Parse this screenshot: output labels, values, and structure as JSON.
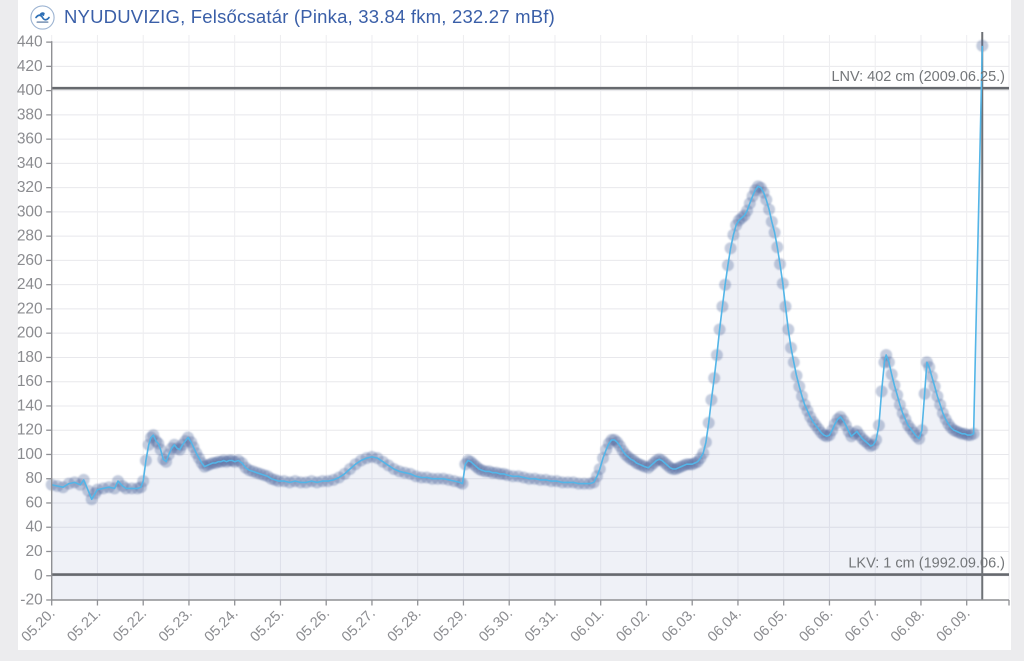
{
  "header": {
    "title": "NYUDUVIZIG, Felsőcsatár (Pinka, 33.84 fkm, 232.27 mBf)",
    "logo_icon": "nyuduvizig-water-authority-logo"
  },
  "chart_data": {
    "type": "line",
    "title": "NYUDUVIZIG, Felsőcsatár (Pinka, 33.84 fkm, 232.27 mBf)",
    "xlabel": "",
    "ylabel": "",
    "unit": "cm",
    "ylim": [
      -20,
      440
    ],
    "y_ticks": [
      -20,
      0,
      20,
      40,
      60,
      80,
      100,
      120,
      140,
      160,
      180,
      200,
      220,
      240,
      260,
      280,
      300,
      320,
      340,
      360,
      380,
      400,
      420,
      440
    ],
    "x_tick_labels": [
      "05.20.",
      "05.21.",
      "05.22.",
      "05.23.",
      "05.24.",
      "05.25.",
      "05.26.",
      "05.27.",
      "05.28.",
      "05.29.",
      "05.30.",
      "05.31.",
      "06.01.",
      "06.02.",
      "06.03.",
      "06.04.",
      "06.05.",
      "06.06.",
      "06.07.",
      "06.08.",
      "06.09."
    ],
    "grid": true,
    "legend": "none",
    "reference_lines": [
      {
        "id": "LNV",
        "label": "LNV: 402 cm (2009.06.25.)",
        "value": 402
      },
      {
        "id": "LKV",
        "label": "LKV: 1 cm (1992.09.06.)",
        "value": 1
      }
    ],
    "last_measurement_day": 20.34,
    "series": [
      {
        "name": "water-level",
        "points": [
          [
            0,
            75
          ],
          [
            0.125,
            74
          ],
          [
            0.25,
            73
          ],
          [
            0.375,
            76
          ],
          [
            0.5,
            77
          ],
          [
            0.625,
            75
          ],
          [
            0.7,
            79
          ],
          [
            0.8,
            70
          ],
          [
            0.875,
            63
          ],
          [
            0.95,
            68
          ],
          [
            1.0,
            71
          ],
          [
            1.125,
            72
          ],
          [
            1.25,
            73
          ],
          [
            1.375,
            72
          ],
          [
            1.45,
            78
          ],
          [
            1.55,
            74
          ],
          [
            1.625,
            72
          ],
          [
            1.75,
            72
          ],
          [
            1.875,
            72
          ],
          [
            1.95,
            73
          ],
          [
            2.0,
            78
          ],
          [
            2.06,
            95
          ],
          [
            2.12,
            108
          ],
          [
            2.17,
            114
          ],
          [
            2.22,
            116
          ],
          [
            2.28,
            111
          ],
          [
            2.33,
            109
          ],
          [
            2.38,
            104
          ],
          [
            2.44,
            96
          ],
          [
            2.5,
            94
          ],
          [
            2.56,
            100
          ],
          [
            2.62,
            105
          ],
          [
            2.68,
            108
          ],
          [
            2.74,
            105
          ],
          [
            2.8,
            104
          ],
          [
            2.86,
            108
          ],
          [
            2.92,
            111
          ],
          [
            2.98,
            114
          ],
          [
            3.05,
            110
          ],
          [
            3.1,
            106
          ],
          [
            3.16,
            101
          ],
          [
            3.22,
            97
          ],
          [
            3.28,
            93
          ],
          [
            3.34,
            90
          ],
          [
            3.4,
            91
          ],
          [
            3.46,
            92
          ],
          [
            3.52,
            93
          ],
          [
            3.58,
            93
          ],
          [
            3.64,
            94
          ],
          [
            3.7,
            94
          ],
          [
            3.76,
            95
          ],
          [
            3.82,
            94
          ],
          [
            3.88,
            95
          ],
          [
            3.94,
            95
          ],
          [
            4.0,
            94
          ],
          [
            4.08,
            95
          ],
          [
            4.16,
            93
          ],
          [
            4.24,
            89
          ],
          [
            4.32,
            87
          ],
          [
            4.4,
            86
          ],
          [
            4.48,
            85
          ],
          [
            4.56,
            84
          ],
          [
            4.64,
            83
          ],
          [
            4.72,
            82
          ],
          [
            4.8,
            80
          ],
          [
            4.88,
            79
          ],
          [
            4.96,
            78
          ],
          [
            5.08,
            78
          ],
          [
            5.2,
            77
          ],
          [
            5.32,
            78
          ],
          [
            5.44,
            77
          ],
          [
            5.56,
            77
          ],
          [
            5.68,
            78
          ],
          [
            5.8,
            77
          ],
          [
            5.92,
            78
          ],
          [
            6.04,
            78
          ],
          [
            6.16,
            79
          ],
          [
            6.28,
            81
          ],
          [
            6.4,
            84
          ],
          [
            6.52,
            88
          ],
          [
            6.64,
            92
          ],
          [
            6.76,
            95
          ],
          [
            6.88,
            97
          ],
          [
            7.0,
            98
          ],
          [
            7.12,
            97
          ],
          [
            7.24,
            94
          ],
          [
            7.36,
            91
          ],
          [
            7.48,
            88
          ],
          [
            7.6,
            86
          ],
          [
            7.72,
            85
          ],
          [
            7.84,
            84
          ],
          [
            7.96,
            82
          ],
          [
            8.08,
            81
          ],
          [
            8.2,
            81
          ],
          [
            8.32,
            80
          ],
          [
            8.44,
            80
          ],
          [
            8.56,
            80
          ],
          [
            8.68,
            79
          ],
          [
            8.8,
            78
          ],
          [
            8.92,
            77
          ],
          [
            8.98,
            76
          ],
          [
            9.04,
            92
          ],
          [
            9.1,
            95
          ],
          [
            9.16,
            94
          ],
          [
            9.22,
            92
          ],
          [
            9.28,
            90
          ],
          [
            9.34,
            88
          ],
          [
            9.4,
            87
          ],
          [
            9.48,
            86
          ],
          [
            9.56,
            86
          ],
          [
            9.64,
            85
          ],
          [
            9.72,
            85
          ],
          [
            9.8,
            84
          ],
          [
            9.88,
            84
          ],
          [
            9.96,
            83
          ],
          [
            10.08,
            82
          ],
          [
            10.2,
            82
          ],
          [
            10.32,
            81
          ],
          [
            10.44,
            80
          ],
          [
            10.56,
            80
          ],
          [
            10.68,
            79
          ],
          [
            10.8,
            79
          ],
          [
            10.92,
            78
          ],
          [
            11.04,
            78
          ],
          [
            11.16,
            77
          ],
          [
            11.28,
            77
          ],
          [
            11.4,
            77
          ],
          [
            11.52,
            76
          ],
          [
            11.64,
            76
          ],
          [
            11.76,
            76
          ],
          [
            11.85,
            77
          ],
          [
            11.92,
            82
          ],
          [
            11.98,
            88
          ],
          [
            12.05,
            97
          ],
          [
            12.12,
            104
          ],
          [
            12.18,
            109
          ],
          [
            12.24,
            112
          ],
          [
            12.3,
            112
          ],
          [
            12.36,
            110
          ],
          [
            12.42,
            107
          ],
          [
            12.48,
            103
          ],
          [
            12.54,
            100
          ],
          [
            12.6,
            98
          ],
          [
            12.66,
            96
          ],
          [
            12.72,
            95
          ],
          [
            12.78,
            93
          ],
          [
            12.84,
            92
          ],
          [
            12.9,
            91
          ],
          [
            12.96,
            90
          ],
          [
            13.04,
            89
          ],
          [
            13.1,
            91
          ],
          [
            13.16,
            93
          ],
          [
            13.22,
            95
          ],
          [
            13.28,
            96
          ],
          [
            13.34,
            95
          ],
          [
            13.4,
            93
          ],
          [
            13.46,
            91
          ],
          [
            13.52,
            89
          ],
          [
            13.58,
            88
          ],
          [
            13.64,
            88
          ],
          [
            13.7,
            89
          ],
          [
            13.76,
            90
          ],
          [
            13.82,
            91
          ],
          [
            13.88,
            92
          ],
          [
            13.94,
            92
          ],
          [
            14.0,
            92
          ],
          [
            14.06,
            93
          ],
          [
            14.12,
            94
          ],
          [
            14.18,
            97
          ],
          [
            14.24,
            101
          ],
          [
            14.3,
            110
          ],
          [
            14.36,
            126
          ],
          [
            14.42,
            145
          ],
          [
            14.48,
            163
          ],
          [
            14.54,
            182
          ],
          [
            14.6,
            203
          ],
          [
            14.66,
            222
          ],
          [
            14.72,
            240
          ],
          [
            14.78,
            256
          ],
          [
            14.84,
            270
          ],
          [
            14.9,
            281
          ],
          [
            14.96,
            289
          ],
          [
            15.02,
            293
          ],
          [
            15.08,
            295
          ],
          [
            15.14,
            297
          ],
          [
            15.2,
            301
          ],
          [
            15.26,
            307
          ],
          [
            15.32,
            313
          ],
          [
            15.38,
            318
          ],
          [
            15.44,
            321
          ],
          [
            15.5,
            320
          ],
          [
            15.56,
            316
          ],
          [
            15.62,
            310
          ],
          [
            15.68,
            302
          ],
          [
            15.74,
            292
          ],
          [
            15.8,
            283
          ],
          [
            15.86,
            271
          ],
          [
            15.92,
            257
          ],
          [
            15.98,
            241
          ],
          [
            16.04,
            222
          ],
          [
            16.1,
            203
          ],
          [
            16.16,
            188
          ],
          [
            16.22,
            176
          ],
          [
            16.28,
            165
          ],
          [
            16.34,
            156
          ],
          [
            16.4,
            148
          ],
          [
            16.46,
            141
          ],
          [
            16.52,
            136
          ],
          [
            16.58,
            131
          ],
          [
            16.64,
            127
          ],
          [
            16.7,
            124
          ],
          [
            16.76,
            121
          ],
          [
            16.82,
            118
          ],
          [
            16.88,
            116
          ],
          [
            16.94,
            115
          ],
          [
            17.0,
            116
          ],
          [
            17.06,
            120
          ],
          [
            17.12,
            125
          ],
          [
            17.18,
            129
          ],
          [
            17.24,
            131
          ],
          [
            17.3,
            128
          ],
          [
            17.36,
            124
          ],
          [
            17.42,
            119
          ],
          [
            17.48,
            115
          ],
          [
            17.54,
            117
          ],
          [
            17.6,
            119
          ],
          [
            17.66,
            116
          ],
          [
            17.72,
            113
          ],
          [
            17.78,
            111
          ],
          [
            17.84,
            109
          ],
          [
            17.9,
            107
          ],
          [
            17.96,
            108
          ],
          [
            18.02,
            112
          ],
          [
            18.08,
            124
          ],
          [
            18.14,
            152
          ],
          [
            18.2,
            176
          ],
          [
            18.24,
            182
          ],
          [
            18.3,
            176
          ],
          [
            18.36,
            166
          ],
          [
            18.42,
            157
          ],
          [
            18.48,
            149
          ],
          [
            18.54,
            141
          ],
          [
            18.6,
            134
          ],
          [
            18.66,
            129
          ],
          [
            18.72,
            124
          ],
          [
            18.78,
            121
          ],
          [
            18.84,
            118
          ],
          [
            18.9,
            115
          ],
          [
            18.96,
            113
          ],
          [
            19.02,
            120
          ],
          [
            19.08,
            150
          ],
          [
            19.13,
            176
          ],
          [
            19.18,
            172
          ],
          [
            19.24,
            164
          ],
          [
            19.3,
            156
          ],
          [
            19.36,
            148
          ],
          [
            19.42,
            141
          ],
          [
            19.48,
            134
          ],
          [
            19.54,
            129
          ],
          [
            19.6,
            125
          ],
          [
            19.66,
            122
          ],
          [
            19.72,
            120
          ],
          [
            19.78,
            119
          ],
          [
            19.84,
            118
          ],
          [
            19.9,
            117
          ],
          [
            19.96,
            117
          ],
          [
            20.02,
            116
          ],
          [
            20.08,
            116
          ],
          [
            20.15,
            117
          ],
          [
            20.34,
            437
          ]
        ]
      }
    ],
    "colors": {
      "line": "#53b5e7",
      "marker": "rgba(76,100,155,0.33)",
      "fill": "rgba(95,115,175,0.10)",
      "grid_h": "#e8e8ec",
      "grid_v": "#ededf0",
      "axis": "#8f9094",
      "axis_text": "#8b8c90",
      "ref_line": "#66696e",
      "ref_text": "#737679",
      "last_line": "#6e7176",
      "title": "#3a5fa8"
    }
  }
}
